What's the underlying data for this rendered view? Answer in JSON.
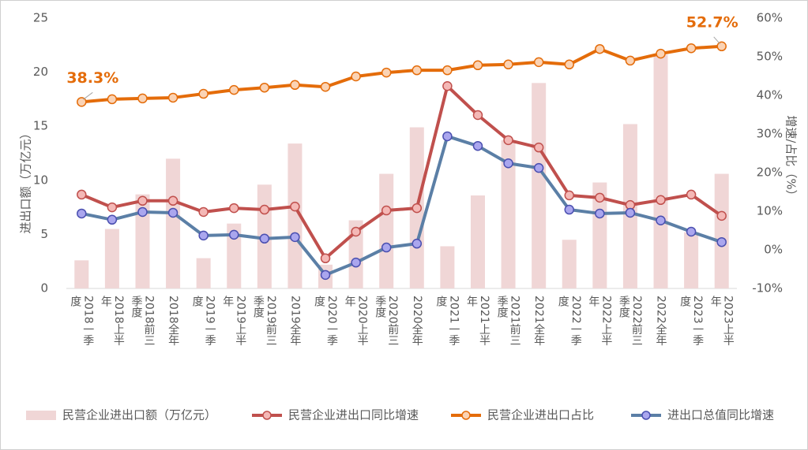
{
  "chart_data": {
    "type": "combo",
    "categories": [
      "2018一季度",
      "2018上半年",
      "2018前三季度",
      "2018全年",
      "2019一季度",
      "2019上半年",
      "2019前三季度",
      "2019全年",
      "2020一季度",
      "2020上半年",
      "2020前三季度",
      "2020全年",
      "2021一季度",
      "2021上半年",
      "2021前三季度",
      "2021全年",
      "2022一季度",
      "2022上半年",
      "2022前三季度",
      "2022全年",
      "2023一季度",
      "2023上半年"
    ],
    "y_label": "进出口额（万亿元）",
    "y2_label": "增速/占比（%）",
    "ylim": [
      0,
      25
    ],
    "yticks": [
      0,
      5,
      10,
      15,
      20,
      25
    ],
    "y2lim": [
      -10,
      60
    ],
    "y2ticks": [
      {
        "value": -10,
        "label": "-10%"
      },
      {
        "value": 0,
        "label": "0%"
      },
      {
        "value": 10,
        "label": "10%"
      },
      {
        "value": 20,
        "label": "20%"
      },
      {
        "value": 30,
        "label": "30%"
      },
      {
        "value": 40,
        "label": "40%"
      },
      {
        "value": 50,
        "label": "50%"
      },
      {
        "value": 60,
        "label": "60%"
      }
    ],
    "legend": "bottom",
    "series": [
      {
        "name": "民营企业进出口额（万亿元）",
        "type": "bar",
        "color": "#f0d6d6",
        "values": [
          2.6,
          5.5,
          8.7,
          12.0,
          2.8,
          6.0,
          9.6,
          13.4,
          2.2,
          6.3,
          10.6,
          14.9,
          3.9,
          8.6,
          13.7,
          19.0,
          4.5,
          9.8,
          15.2,
          21.6,
          5.2,
          10.6
        ]
      },
      {
        "name": "民营企业进出口同比增速",
        "type": "line",
        "axis": "y2",
        "color": "#c0504d",
        "marker_fill": "#f4b8b6",
        "values": [
          14.3,
          11.0,
          12.7,
          12.7,
          9.8,
          10.8,
          10.4,
          11.2,
          -2.2,
          4.7,
          10.2,
          10.8,
          42.4,
          34.9,
          28.4,
          26.5,
          14.1,
          13.5,
          11.6,
          12.9,
          14.3,
          8.8
        ]
      },
      {
        "name": "民营企业进出口占比",
        "type": "line",
        "axis": "y2",
        "color": "#e46c0a",
        "marker_fill": "#fbd3b4",
        "values": [
          38.3,
          39.0,
          39.2,
          39.4,
          40.4,
          41.4,
          42.0,
          42.7,
          42.2,
          44.9,
          45.9,
          46.5,
          46.5,
          47.8,
          48.0,
          48.6,
          48.0,
          52.0,
          49.0,
          50.8,
          52.2,
          52.7
        ],
        "value_labels": [
          "38.3%",
          null,
          null,
          null,
          null,
          null,
          null,
          null,
          null,
          null,
          null,
          null,
          null,
          null,
          null,
          null,
          null,
          null,
          null,
          null,
          null,
          "52.7%"
        ]
      },
      {
        "name": "进出口总值同比增速",
        "type": "line",
        "axis": "y2",
        "color": "#5b7fa6",
        "marker_fill": "#aaa6ee",
        "marker_stroke": "#4a4fb0",
        "values": [
          9.4,
          7.8,
          9.8,
          9.6,
          3.7,
          3.9,
          2.9,
          3.3,
          -6.5,
          -3.3,
          0.6,
          1.6,
          29.4,
          26.9,
          22.4,
          21.2,
          10.4,
          9.4,
          9.6,
          7.6,
          4.7,
          2.0
        ]
      }
    ]
  }
}
